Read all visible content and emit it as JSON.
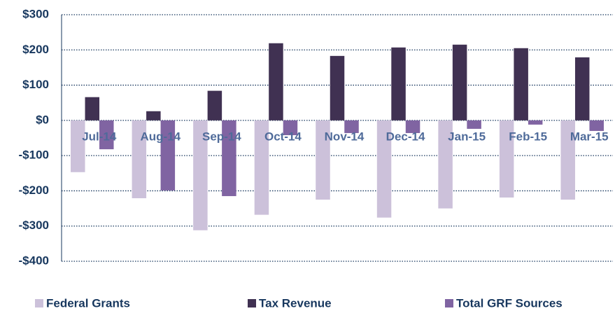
{
  "chart_data": {
    "type": "bar",
    "categories": [
      "Jul-14",
      "Aug-14",
      "Sep-14",
      "Oct-14",
      "Nov-14",
      "Dec-14",
      "Jan-15",
      "Feb-15",
      "Mar-15"
    ],
    "series": [
      {
        "name": "Federal Grants",
        "color": "#ccc1da",
        "values": [
          -147,
          -221,
          -312,
          -268,
          -225,
          -276,
          -250,
          -219,
          -225
        ]
      },
      {
        "name": "Tax Revenue",
        "color": "#403152",
        "values": [
          66,
          26,
          84,
          219,
          183,
          207,
          215,
          205,
          179
        ]
      },
      {
        "name": "Total GRF Sources",
        "color": "#8064a2",
        "values": [
          -82,
          -199,
          -215,
          -42,
          -36,
          -36,
          -24,
          -12,
          -30
        ]
      }
    ],
    "ylim": [
      -400,
      300
    ],
    "yticks": [
      {
        "value": -400,
        "label": "-$400"
      },
      {
        "value": -300,
        "label": "-$300"
      },
      {
        "value": -200,
        "label": "-$200"
      },
      {
        "value": -100,
        "label": "-$100"
      },
      {
        "value": 0,
        "label": "$0"
      },
      {
        "value": 100,
        "label": "$100"
      },
      {
        "value": 200,
        "label": "$200"
      },
      {
        "value": 300,
        "label": "$300"
      }
    ],
    "grid": true,
    "legend": "bottom"
  }
}
